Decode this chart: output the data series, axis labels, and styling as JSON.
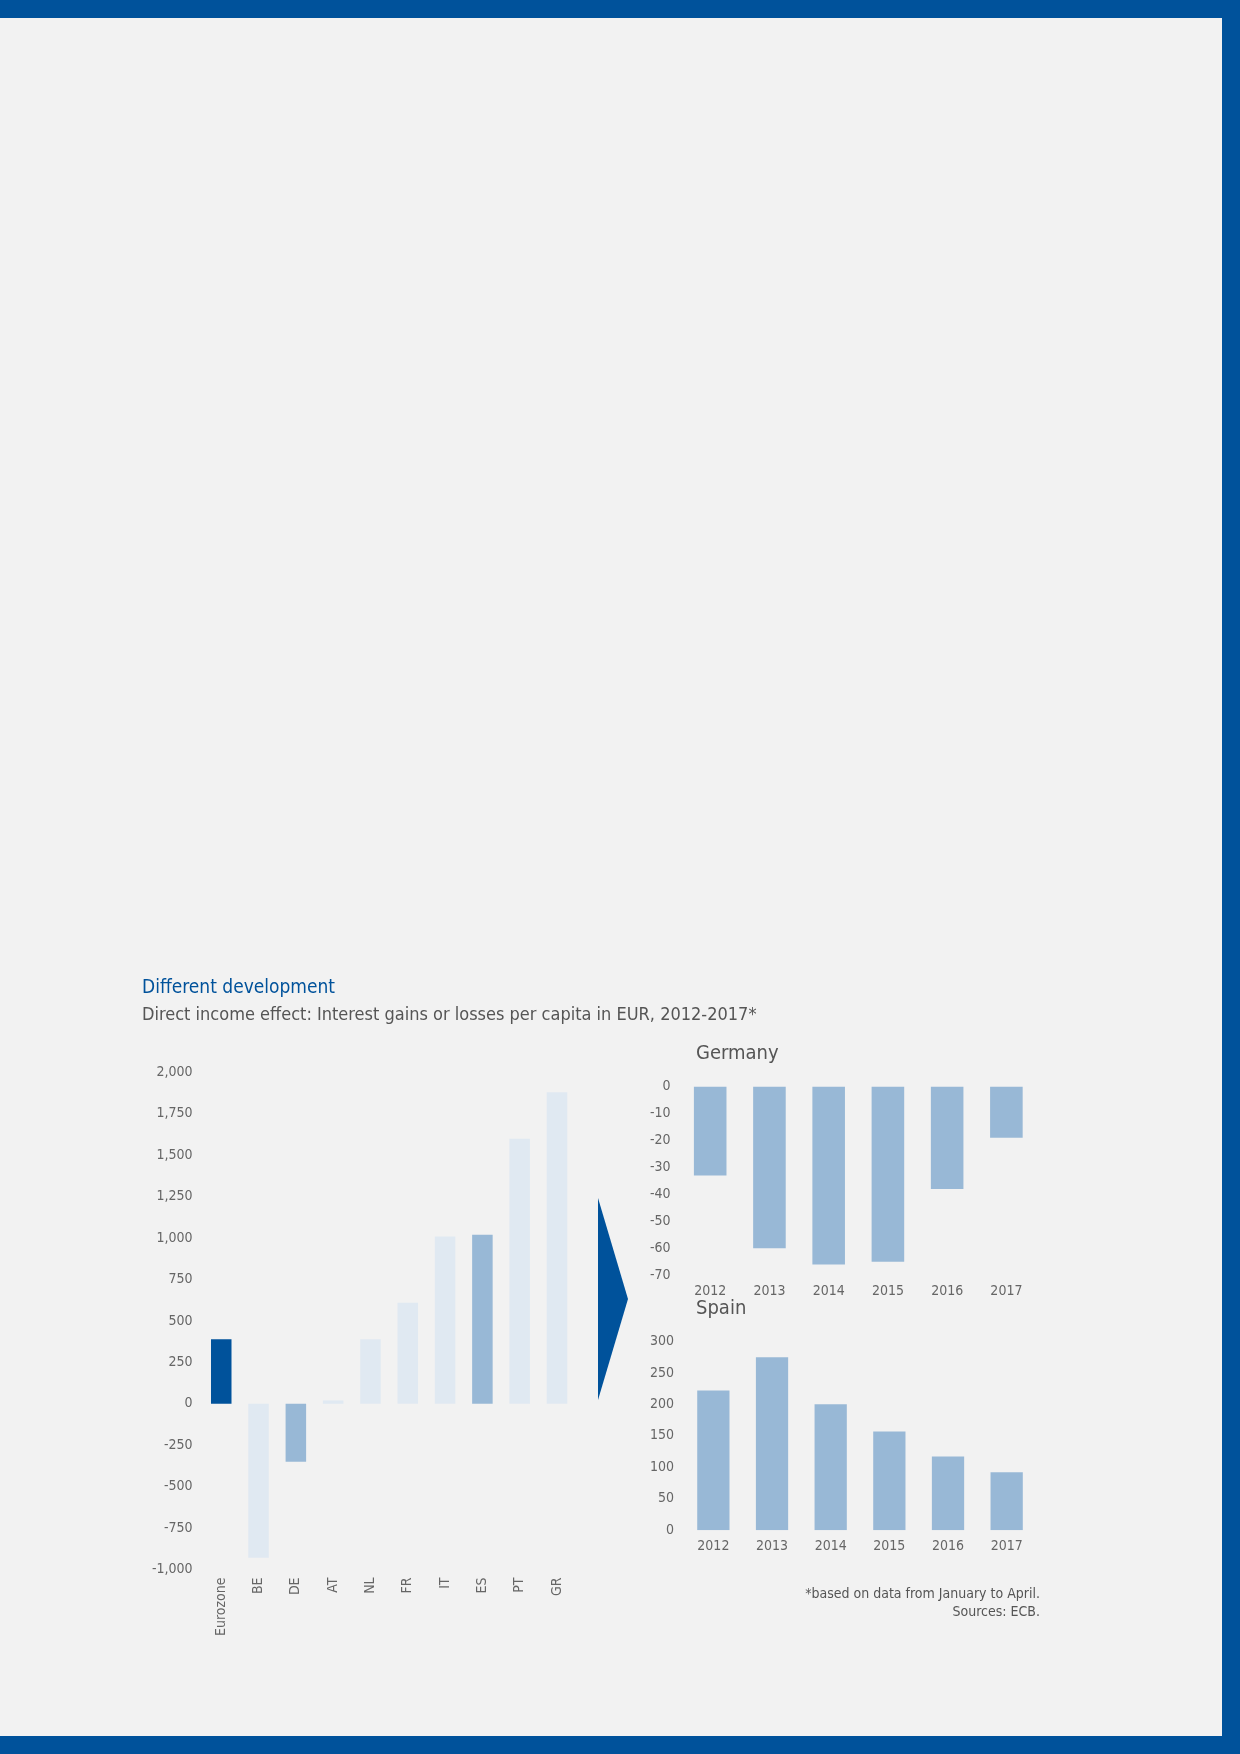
{
  "chart_data": [
    {
      "type": "bar",
      "title": "Different development",
      "subtitle": "Direct income effect: Interest gains or losses per capita in EUR, 2012-2017*",
      "categories": [
        "Eurozone",
        "BE",
        "DE",
        "AT",
        "NL",
        "FR",
        "IT",
        "ES",
        "PT",
        "GR"
      ],
      "values": [
        390,
        -930,
        -350,
        20,
        390,
        610,
        1010,
        1020,
        1600,
        1880
      ],
      "colors": [
        "#00529b",
        "#e0e9f2",
        "#98b8d6",
        "#e0e9f2",
        "#e0e9f2",
        "#e0e9f2",
        "#e0e9f2",
        "#98b8d6",
        "#e0e9f2",
        "#e0e9f2"
      ],
      "ylim": [
        -1000,
        2000
      ],
      "yticks": [
        {
          "value": 2000,
          "label": "2,000"
        },
        {
          "value": 1750,
          "label": "1,750"
        },
        {
          "value": 1500,
          "label": "1,500"
        },
        {
          "value": 1250,
          "label": "1,250"
        },
        {
          "value": 1000,
          "label": "1,000"
        },
        750,
        500,
        250,
        0,
        -250,
        -500,
        -750,
        {
          "value": -1000,
          "label": "-1,000"
        }
      ]
    },
    {
      "type": "bar",
      "title": "Germany",
      "categories": [
        "2012",
        "2013",
        "2014",
        "2015",
        "2016",
        "2017"
      ],
      "values": [
        -33,
        -60,
        -66,
        -65,
        -38,
        -19
      ],
      "color": "#98b8d6",
      "ylim": [
        -70,
        0
      ],
      "yticks": [
        0,
        -10,
        -20,
        -30,
        -40,
        -50,
        -60,
        -70
      ]
    },
    {
      "type": "bar",
      "title": "Spain",
      "categories": [
        "2012",
        "2013",
        "2014",
        "2015",
        "2016",
        "2017"
      ],
      "values": [
        222,
        275,
        200,
        157,
        117,
        92
      ],
      "color": "#98b8d6",
      "ylim": [
        0,
        300
      ],
      "yticks": [
        0,
        50,
        100,
        150,
        200,
        250,
        300
      ],
      "annotations": [
        "*based on data from January to April.",
        "Sources: ECB."
      ]
    }
  ]
}
